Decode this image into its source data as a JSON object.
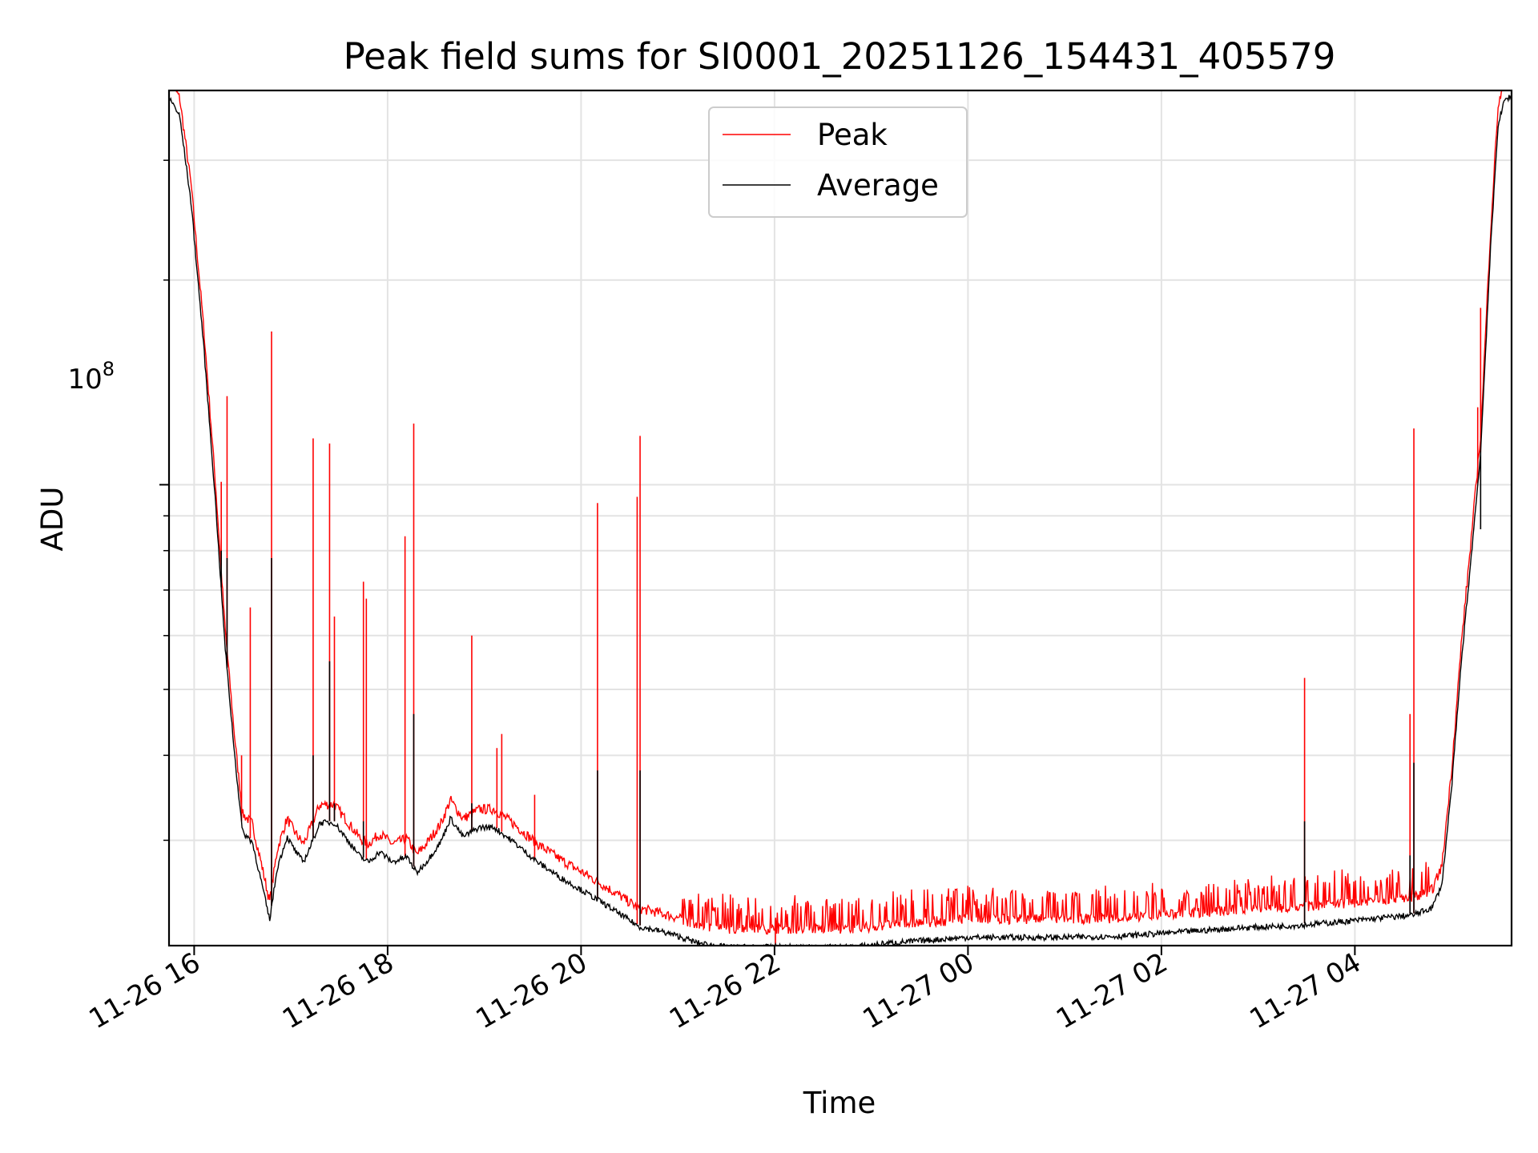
{
  "chart_data": {
    "type": "line",
    "title": "Peak field sums for SI0001_20251126_154431_405579",
    "xlabel": "Time",
    "ylabel": "ADU",
    "yscale": "log",
    "ylim": [
      21000000,
      380000000
    ],
    "xlim_hours": [
      15.74,
      29.62
    ],
    "grid": true,
    "legend_loc": "upper center",
    "x_ticks": [
      {
        "hour": 16,
        "label": "11-26 16"
      },
      {
        "hour": 18,
        "label": "11-26 18"
      },
      {
        "hour": 20,
        "label": "11-26 20"
      },
      {
        "hour": 22,
        "label": "11-26 22"
      },
      {
        "hour": 24,
        "label": "11-27 00"
      },
      {
        "hour": 26,
        "label": "11-27 02"
      },
      {
        "hour": 28,
        "label": "11-27 04"
      }
    ],
    "y_tick_label": "10",
    "y_tick_exponent": "8",
    "y_major_tick": 100000000,
    "series": [
      {
        "name": "Peak",
        "color": "#ff0000",
        "baseline_offset": 1.04,
        "spikes": [
          [
            16.28,
            101000000
          ],
          [
            16.34,
            135000000
          ],
          [
            16.49,
            40000000
          ],
          [
            16.58,
            66000000
          ],
          [
            16.8,
            168000000
          ],
          [
            17.23,
            117000000
          ],
          [
            17.4,
            115000000
          ],
          [
            17.45,
            64000000
          ],
          [
            17.75,
            72000000
          ],
          [
            17.78,
            68000000
          ],
          [
            18.18,
            84000000
          ],
          [
            18.27,
            123000000
          ],
          [
            18.87,
            60000000
          ],
          [
            19.13,
            41000000
          ],
          [
            19.18,
            43000000
          ],
          [
            19.52,
            35000000
          ],
          [
            20.17,
            94000000
          ],
          [
            20.58,
            96000000
          ],
          [
            20.61,
            118000000
          ],
          [
            22.01,
            23000000
          ],
          [
            27.48,
            52000000
          ],
          [
            28.57,
            46000000
          ],
          [
            28.61,
            121000000
          ],
          [
            29.27,
            130000000
          ],
          [
            29.3,
            182000000
          ]
        ]
      },
      {
        "name": "Average",
        "color": "#000000",
        "points": [
          [
            15.76,
            370000000
          ],
          [
            15.85,
            350000000
          ],
          [
            15.97,
            260000000
          ],
          [
            16.1,
            160000000
          ],
          [
            16.22,
            95000000
          ],
          [
            16.32,
            58000000
          ],
          [
            16.42,
            40000000
          ],
          [
            16.5,
            31000000
          ],
          [
            16.6,
            30000000
          ],
          [
            16.7,
            26000000
          ],
          [
            16.78,
            23000000
          ],
          [
            16.86,
            27500000
          ],
          [
            16.96,
            30500000
          ],
          [
            17.05,
            29000000
          ],
          [
            17.13,
            28000000
          ],
          [
            17.2,
            29500000
          ],
          [
            17.3,
            32000000
          ],
          [
            17.45,
            32000000
          ],
          [
            17.6,
            30000000
          ],
          [
            17.72,
            28500000
          ],
          [
            17.8,
            28000000
          ],
          [
            17.92,
            29000000
          ],
          [
            18.05,
            28000000
          ],
          [
            18.2,
            28500000
          ],
          [
            18.3,
            27000000
          ],
          [
            18.4,
            28000000
          ],
          [
            18.55,
            30000000
          ],
          [
            18.65,
            32500000
          ],
          [
            18.78,
            30500000
          ],
          [
            18.95,
            31500000
          ],
          [
            19.1,
            31500000
          ],
          [
            19.3,
            30000000
          ],
          [
            19.55,
            28000000
          ],
          [
            19.8,
            26500000
          ],
          [
            20.0,
            25500000
          ],
          [
            20.2,
            24500000
          ],
          [
            20.4,
            23500000
          ],
          [
            20.6,
            22500000
          ],
          [
            20.8,
            22200000
          ],
          [
            21.0,
            21800000
          ],
          [
            21.2,
            21300000
          ],
          [
            21.5,
            21000000
          ],
          [
            21.8,
            21000000
          ],
          [
            22.2,
            21000000
          ],
          [
            22.8,
            21000000
          ],
          [
            23.2,
            21300000
          ],
          [
            23.6,
            21500000
          ],
          [
            24.0,
            21700000
          ],
          [
            24.4,
            21700000
          ],
          [
            25.0,
            21700000
          ],
          [
            25.6,
            21800000
          ],
          [
            26.2,
            22100000
          ],
          [
            26.8,
            22400000
          ],
          [
            27.4,
            22600000
          ],
          [
            27.9,
            22900000
          ],
          [
            28.3,
            23200000
          ],
          [
            28.6,
            23400000
          ],
          [
            28.8,
            24000000
          ],
          [
            28.9,
            26000000
          ],
          [
            29.0,
            36000000
          ],
          [
            29.1,
            55000000
          ],
          [
            29.2,
            78000000
          ],
          [
            29.3,
            112000000
          ],
          [
            29.4,
            220000000
          ],
          [
            29.48,
            340000000
          ],
          [
            29.55,
            370000000
          ],
          [
            29.62,
            375000000
          ]
        ],
        "spikes": [
          [
            16.28,
            80000000
          ],
          [
            16.34,
            78000000
          ],
          [
            16.8,
            78000000
          ],
          [
            17.23,
            40000000
          ],
          [
            17.4,
            55000000
          ],
          [
            17.45,
            34000000
          ],
          [
            17.75,
            32000000
          ],
          [
            18.27,
            46000000
          ],
          [
            18.87,
            34000000
          ],
          [
            20.17,
            38000000
          ],
          [
            20.61,
            38000000
          ],
          [
            27.48,
            32000000
          ],
          [
            28.57,
            28500000
          ],
          [
            28.61,
            39000000
          ],
          [
            29.3,
            86000000
          ]
        ]
      }
    ]
  }
}
